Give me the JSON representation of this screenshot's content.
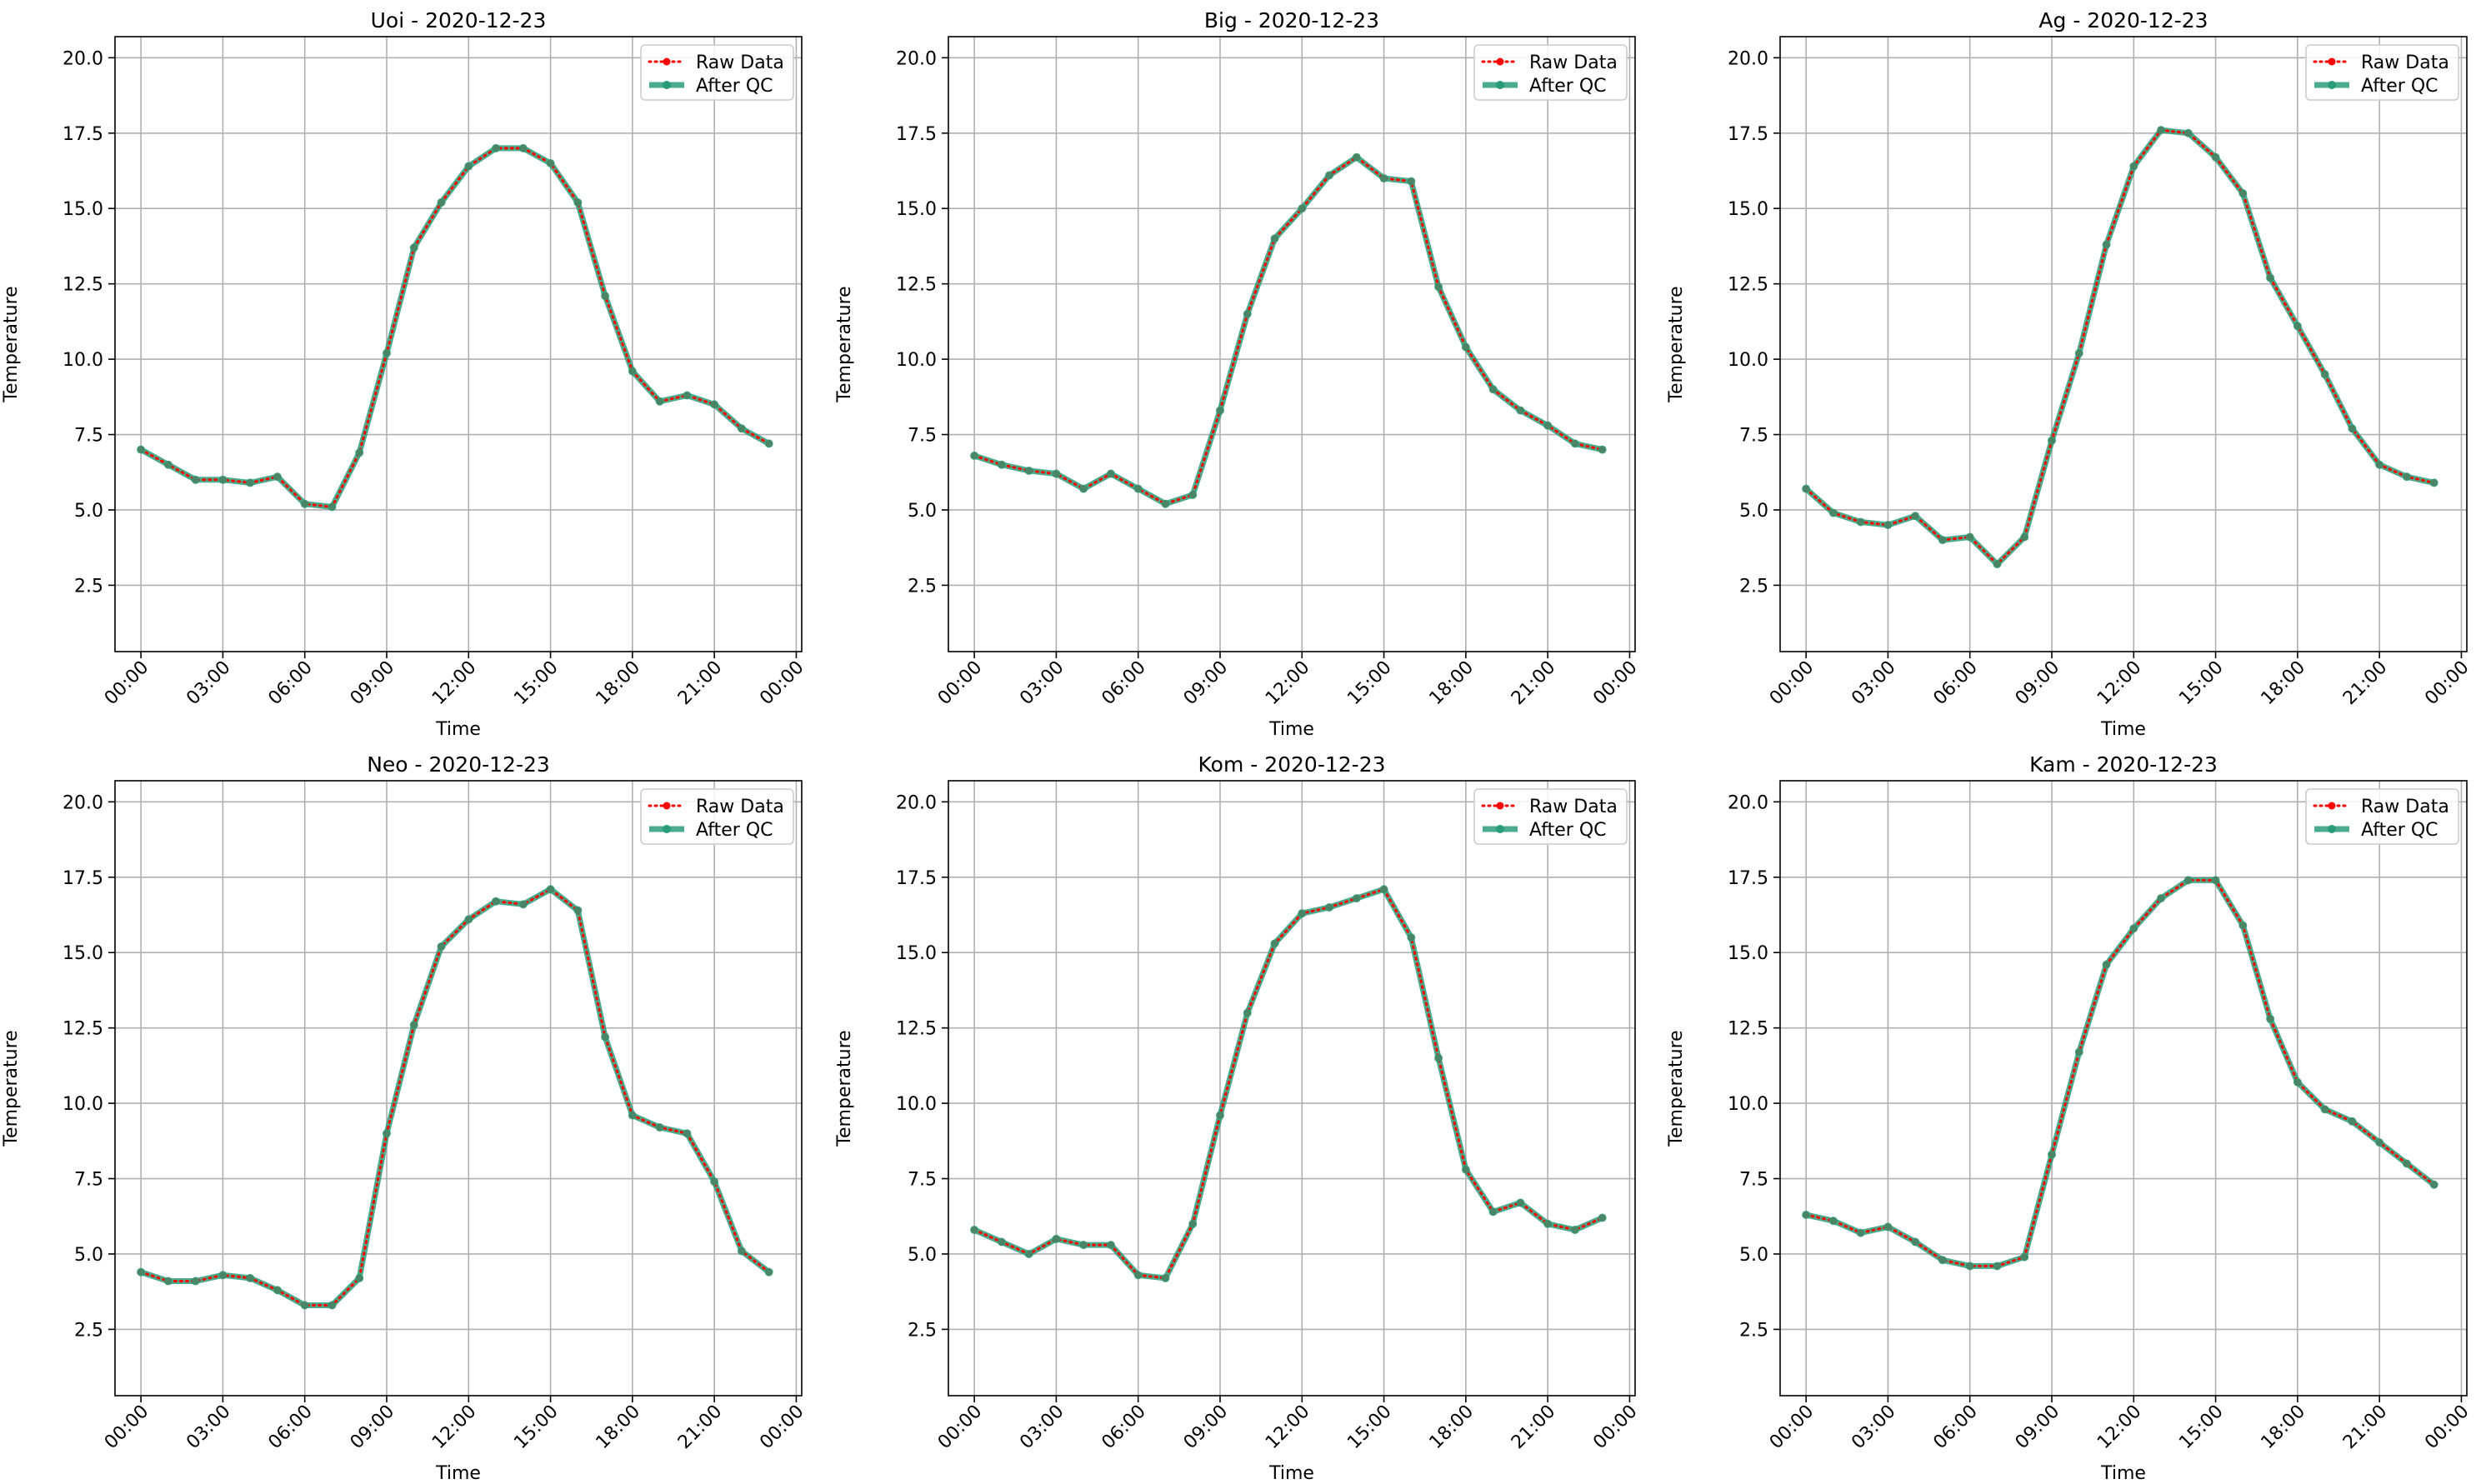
{
  "colors": {
    "raw": "#ff0000",
    "qc": "#2a9d78",
    "grid": "#b0b0b0",
    "axis": "#000000"
  },
  "legend": {
    "raw_label": "Raw Data",
    "qc_label": "After QC"
  },
  "chart_data": [
    {
      "type": "line",
      "title": "Uoi - 2020-12-23",
      "xlabel": "Time",
      "ylabel": "Temperature",
      "ylim": [
        0.3,
        20.7
      ],
      "yticks": [
        "2.5",
        "5.0",
        "7.5",
        "10.0",
        "12.5",
        "15.0",
        "17.5",
        "20.0"
      ],
      "xticks": [
        "00:00",
        "03:00",
        "06:00",
        "09:00",
        "12:00",
        "15:00",
        "18:00",
        "21:00",
        "00:00"
      ],
      "legend_position": "upper right",
      "grid": true,
      "x_hours": [
        0,
        1,
        2,
        3,
        4,
        5,
        6,
        7,
        8,
        9,
        10,
        11,
        12,
        13,
        14,
        15,
        16,
        17,
        18,
        19,
        20,
        21,
        22,
        23
      ],
      "series": [
        {
          "name": "Raw Data",
          "values": [
            7.0,
            6.5,
            6.0,
            6.0,
            5.9,
            6.1,
            5.2,
            5.1,
            6.9,
            10.2,
            13.7,
            15.2,
            16.4,
            17.0,
            17.0,
            16.5,
            15.2,
            12.1,
            9.6,
            8.6,
            8.8,
            8.5,
            7.7,
            7.2
          ]
        },
        {
          "name": "After QC",
          "values": [
            7.0,
            6.5,
            6.0,
            6.0,
            5.9,
            6.1,
            5.2,
            5.1,
            6.9,
            10.2,
            13.7,
            15.2,
            16.4,
            17.0,
            17.0,
            16.5,
            15.2,
            12.1,
            9.6,
            8.6,
            8.8,
            8.5,
            7.7,
            7.2
          ]
        }
      ]
    },
    {
      "type": "line",
      "title": "Big - 2020-12-23",
      "xlabel": "Time",
      "ylabel": "Temperature",
      "ylim": [
        0.3,
        20.7
      ],
      "yticks": [
        "2.5",
        "5.0",
        "7.5",
        "10.0",
        "12.5",
        "15.0",
        "17.5",
        "20.0"
      ],
      "xticks": [
        "00:00",
        "03:00",
        "06:00",
        "09:00",
        "12:00",
        "15:00",
        "18:00",
        "21:00",
        "00:00"
      ],
      "legend_position": "upper right",
      "grid": true,
      "x_hours": [
        0,
        1,
        2,
        3,
        4,
        5,
        6,
        7,
        8,
        9,
        10,
        11,
        12,
        13,
        14,
        15,
        16,
        17,
        18,
        19,
        20,
        21,
        22,
        23
      ],
      "series": [
        {
          "name": "Raw Data",
          "values": [
            6.8,
            6.5,
            6.3,
            6.2,
            5.7,
            6.2,
            5.7,
            5.2,
            5.5,
            8.3,
            11.5,
            14.0,
            15.0,
            16.1,
            16.7,
            16.0,
            15.9,
            12.4,
            10.4,
            9.0,
            8.3,
            7.8,
            7.2,
            7.0
          ]
        },
        {
          "name": "After QC",
          "values": [
            6.8,
            6.5,
            6.3,
            6.2,
            5.7,
            6.2,
            5.7,
            5.2,
            5.5,
            8.3,
            11.5,
            14.0,
            15.0,
            16.1,
            16.7,
            16.0,
            15.9,
            12.4,
            10.4,
            9.0,
            8.3,
            7.8,
            7.2,
            7.0
          ]
        }
      ]
    },
    {
      "type": "line",
      "title": "Ag - 2020-12-23",
      "xlabel": "Time",
      "ylabel": "Temperature",
      "ylim": [
        0.3,
        20.7
      ],
      "yticks": [
        "2.5",
        "5.0",
        "7.5",
        "10.0",
        "12.5",
        "15.0",
        "17.5",
        "20.0"
      ],
      "xticks": [
        "00:00",
        "03:00",
        "06:00",
        "09:00",
        "12:00",
        "15:00",
        "18:00",
        "21:00",
        "00:00"
      ],
      "legend_position": "upper right",
      "grid": true,
      "x_hours": [
        0,
        1,
        2,
        3,
        4,
        5,
        6,
        7,
        8,
        9,
        10,
        11,
        12,
        13,
        14,
        15,
        16,
        17,
        18,
        19,
        20,
        21,
        22,
        23
      ],
      "series": [
        {
          "name": "Raw Data",
          "values": [
            5.7,
            4.9,
            4.6,
            4.5,
            4.8,
            4.0,
            4.1,
            3.2,
            4.1,
            7.3,
            10.2,
            13.8,
            16.4,
            17.6,
            17.5,
            16.7,
            15.5,
            12.7,
            11.1,
            9.5,
            7.7,
            6.5,
            6.1,
            5.9
          ]
        },
        {
          "name": "After QC",
          "values": [
            5.7,
            4.9,
            4.6,
            4.5,
            4.8,
            4.0,
            4.1,
            3.2,
            4.1,
            7.3,
            10.2,
            13.8,
            16.4,
            17.6,
            17.5,
            16.7,
            15.5,
            12.7,
            11.1,
            9.5,
            7.7,
            6.5,
            6.1,
            5.9
          ]
        }
      ]
    },
    {
      "type": "line",
      "title": "Neo - 2020-12-23",
      "xlabel": "Time",
      "ylabel": "Temperature",
      "ylim": [
        0.3,
        20.7
      ],
      "yticks": [
        "2.5",
        "5.0",
        "7.5",
        "10.0",
        "12.5",
        "15.0",
        "17.5",
        "20.0"
      ],
      "xticks": [
        "00:00",
        "03:00",
        "06:00",
        "09:00",
        "12:00",
        "15:00",
        "18:00",
        "21:00",
        "00:00"
      ],
      "legend_position": "upper right",
      "grid": true,
      "x_hours": [
        0,
        1,
        2,
        3,
        4,
        5,
        6,
        7,
        8,
        9,
        10,
        11,
        12,
        13,
        14,
        15,
        16,
        17,
        18,
        19,
        20,
        21,
        22,
        23
      ],
      "series": [
        {
          "name": "Raw Data",
          "values": [
            4.4,
            4.1,
            4.1,
            4.3,
            4.2,
            3.8,
            3.3,
            3.3,
            4.2,
            9.0,
            12.6,
            15.2,
            16.1,
            16.7,
            16.6,
            17.1,
            16.4,
            12.2,
            9.6,
            9.2,
            9.0,
            7.4,
            5.1,
            4.4
          ]
        },
        {
          "name": "After QC",
          "values": [
            4.4,
            4.1,
            4.1,
            4.3,
            4.2,
            3.8,
            3.3,
            3.3,
            4.2,
            9.0,
            12.6,
            15.2,
            16.1,
            16.7,
            16.6,
            17.1,
            16.4,
            12.2,
            9.6,
            9.2,
            9.0,
            7.4,
            5.1,
            4.4
          ]
        }
      ]
    },
    {
      "type": "line",
      "title": "Kom - 2020-12-23",
      "xlabel": "Time",
      "ylabel": "Temperature",
      "ylim": [
        0.3,
        20.7
      ],
      "yticks": [
        "2.5",
        "5.0",
        "7.5",
        "10.0",
        "12.5",
        "15.0",
        "17.5",
        "20.0"
      ],
      "xticks": [
        "00:00",
        "03:00",
        "06:00",
        "09:00",
        "12:00",
        "15:00",
        "18:00",
        "21:00",
        "00:00"
      ],
      "legend_position": "upper right",
      "grid": true,
      "x_hours": [
        0,
        1,
        2,
        3,
        4,
        5,
        6,
        7,
        8,
        9,
        10,
        11,
        12,
        13,
        14,
        15,
        16,
        17,
        18,
        19,
        20,
        21,
        22,
        23
      ],
      "series": [
        {
          "name": "Raw Data",
          "values": [
            5.8,
            5.4,
            5.0,
            5.5,
            5.3,
            5.3,
            4.3,
            4.2,
            6.0,
            9.6,
            13.0,
            15.3,
            16.3,
            16.5,
            16.8,
            17.1,
            15.5,
            11.5,
            7.8,
            6.4,
            6.7,
            6.0,
            5.8,
            6.2
          ]
        },
        {
          "name": "After QC",
          "values": [
            5.8,
            5.4,
            5.0,
            5.5,
            5.3,
            5.3,
            4.3,
            4.2,
            6.0,
            9.6,
            13.0,
            15.3,
            16.3,
            16.5,
            16.8,
            17.1,
            15.5,
            11.5,
            7.8,
            6.4,
            6.7,
            6.0,
            5.8,
            6.2
          ]
        }
      ]
    },
    {
      "type": "line",
      "title": "Kam - 2020-12-23",
      "xlabel": "Time",
      "ylabel": "Temperature",
      "ylim": [
        0.3,
        20.7
      ],
      "yticks": [
        "2.5",
        "5.0",
        "7.5",
        "10.0",
        "12.5",
        "15.0",
        "17.5",
        "20.0"
      ],
      "xticks": [
        "00:00",
        "03:00",
        "06:00",
        "09:00",
        "12:00",
        "15:00",
        "18:00",
        "21:00",
        "00:00"
      ],
      "legend_position": "upper right",
      "grid": true,
      "x_hours": [
        0,
        1,
        2,
        3,
        4,
        5,
        6,
        7,
        8,
        9,
        10,
        11,
        12,
        13,
        14,
        15,
        16,
        17,
        18,
        19,
        20,
        21,
        22,
        23
      ],
      "series": [
        {
          "name": "Raw Data",
          "values": [
            6.3,
            6.1,
            5.7,
            5.9,
            5.4,
            4.8,
            4.6,
            4.6,
            4.9,
            8.3,
            11.7,
            14.6,
            15.8,
            16.8,
            17.4,
            17.4,
            15.9,
            12.8,
            10.7,
            9.8,
            9.4,
            8.7,
            8.0,
            7.3
          ]
        },
        {
          "name": "After QC",
          "values": [
            6.3,
            6.1,
            5.7,
            5.9,
            5.4,
            4.8,
            4.6,
            4.6,
            4.9,
            8.3,
            11.7,
            14.6,
            15.8,
            16.8,
            17.4,
            17.4,
            15.9,
            12.8,
            10.7,
            9.8,
            9.4,
            8.7,
            8.0,
            7.3
          ]
        }
      ]
    }
  ]
}
